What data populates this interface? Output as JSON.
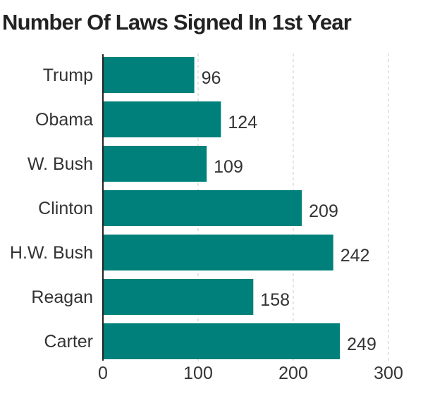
{
  "chart_data": {
    "type": "bar",
    "orientation": "horizontal",
    "title": "Number Of Laws Signed In 1st Year",
    "xlabel": "",
    "ylabel": "",
    "categories": [
      "Trump",
      "Obama",
      "W. Bush",
      "Clinton",
      "H.W. Bush",
      "Reagan",
      "Carter"
    ],
    "values": [
      96,
      124,
      109,
      209,
      242,
      158,
      249
    ],
    "xlim": [
      0,
      300
    ],
    "xticks": [
      0,
      100,
      200,
      300
    ],
    "grid": "vertical dashed",
    "colors": {
      "bar": "#00807a"
    }
  }
}
